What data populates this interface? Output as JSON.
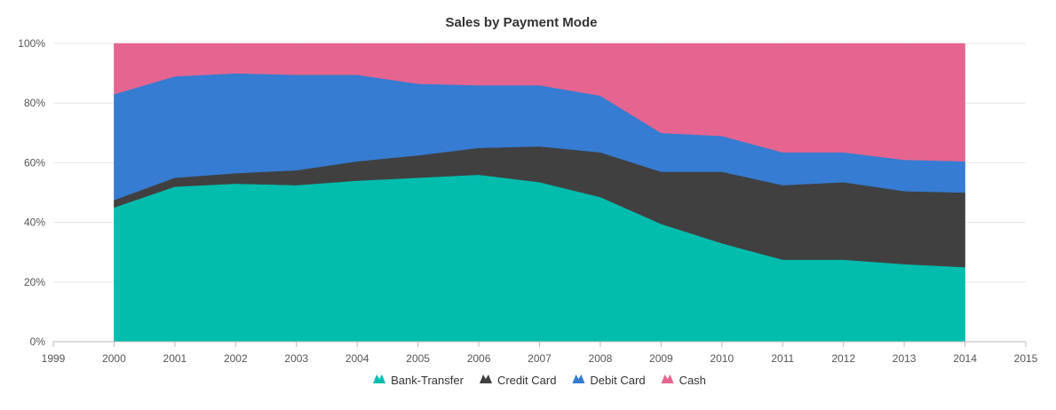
{
  "chart_data": {
    "type": "area",
    "stacking": "100%",
    "title": "Sales by Payment Mode",
    "xlabel": "",
    "ylabel": "",
    "x": [
      2000,
      2001,
      2002,
      2003,
      2004,
      2005,
      2006,
      2007,
      2008,
      2009,
      2010,
      2011,
      2012,
      2013,
      2014
    ],
    "xlim": [
      1999,
      2015
    ],
    "ylim": [
      0,
      100
    ],
    "x_ticks": [
      "1999",
      "2000",
      "2001",
      "2002",
      "2003",
      "2004",
      "2005",
      "2006",
      "2007",
      "2008",
      "2009",
      "2010",
      "2011",
      "2012",
      "2013",
      "2014",
      "2015"
    ],
    "y_ticks": [
      "0%",
      "20%",
      "40%",
      "60%",
      "80%",
      "100%"
    ],
    "grid": true,
    "legend_position": "bottom",
    "series": [
      {
        "name": "Bank-Transfer",
        "color": "#00bdae",
        "values": [
          45,
          52,
          53,
          52.5,
          54,
          55,
          56,
          53.5,
          48.5,
          39.5,
          33,
          27.5,
          27.5,
          26,
          25
        ]
      },
      {
        "name": "Credit Card",
        "color": "#404041",
        "values": [
          2.5,
          3,
          3.5,
          5,
          6.5,
          7.5,
          9,
          12,
          15,
          17.5,
          24,
          25,
          26,
          24.5,
          25
        ]
      },
      {
        "name": "Debit Card",
        "color": "#357cd2",
        "values": [
          35.5,
          34,
          33.5,
          32,
          29,
          24,
          21,
          20.5,
          19,
          13,
          12,
          11,
          10,
          10.5,
          10.5
        ]
      },
      {
        "name": "Cash",
        "color": "#e56590",
        "values": [
          17,
          11,
          10,
          10.5,
          10.5,
          13.5,
          14,
          14,
          17.5,
          30,
          31,
          36.5,
          36.5,
          39,
          39.5
        ]
      }
    ]
  }
}
